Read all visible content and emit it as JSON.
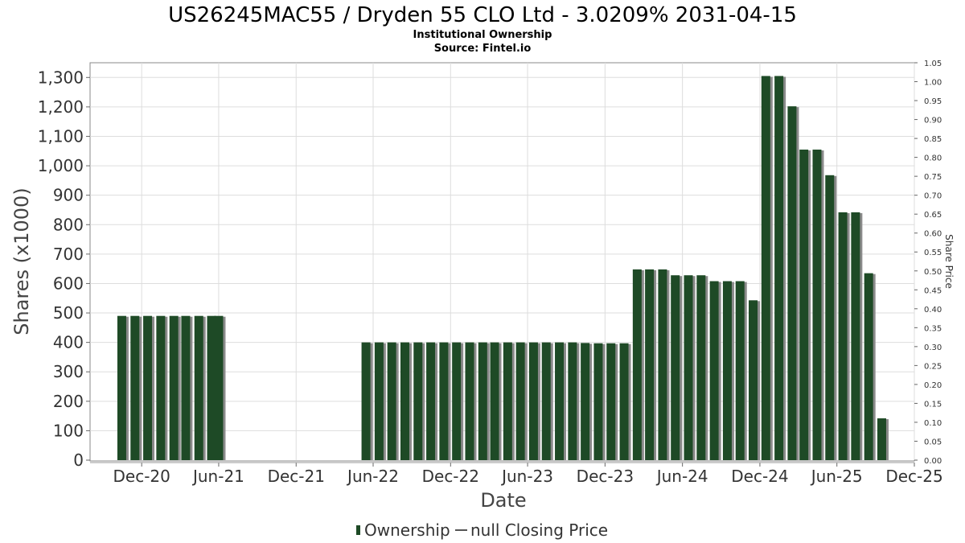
{
  "title": "US26245MAC55 / Dryden 55 CLO Ltd - 3.0209% 2031-04-15",
  "subtitle": "Institutional Ownership",
  "source": "Source: Fintel.io",
  "colors": {
    "bar": "#1e4a26",
    "bar_shadow": "#8a8a8a",
    "grid": "#dddddd",
    "plot_border": "#888888"
  },
  "legend": {
    "ownership_label": "Ownership",
    "price_label": "null Closing Price"
  },
  "chart_data": {
    "type": "bar",
    "title": "US26245MAC55 / Dryden 55 CLO Ltd - 3.0209% 2031-04-15",
    "subtitle": "Institutional Ownership",
    "xlabel": "Date",
    "ylabel": "Shares (x1000)",
    "y2label": "Share Price",
    "ylim": [
      0,
      1350
    ],
    "y2lim": [
      0,
      1.05
    ],
    "xlim": [
      "2020-08-01",
      "2025-12-01"
    ],
    "yticks": [
      "0",
      "100",
      "200",
      "300",
      "400",
      "500",
      "600",
      "700",
      "800",
      "900",
      "1,000",
      "1,100",
      "1,200",
      "1,300"
    ],
    "y2ticks": [
      "0.00",
      "0.05",
      "0.10",
      "0.15",
      "0.20",
      "0.25",
      "0.30",
      "0.35",
      "0.40",
      "0.45",
      "0.50",
      "0.55",
      "0.60",
      "0.65",
      "0.70",
      "0.75",
      "0.80",
      "0.85",
      "0.90",
      "0.95",
      "1.00",
      "1.05"
    ],
    "xticks": [
      {
        "date": "2020-12-01",
        "label": "Dec-20"
      },
      {
        "date": "2021-06-01",
        "label": "Jun-21"
      },
      {
        "date": "2021-12-01",
        "label": "Dec-21"
      },
      {
        "date": "2022-06-01",
        "label": "Jun-22"
      },
      {
        "date": "2022-12-01",
        "label": "Dec-22"
      },
      {
        "date": "2023-06-01",
        "label": "Jun-23"
      },
      {
        "date": "2023-12-01",
        "label": "Dec-23"
      },
      {
        "date": "2024-06-01",
        "label": "Jun-24"
      },
      {
        "date": "2024-12-01",
        "label": "Dec-24"
      },
      {
        "date": "2025-06-01",
        "label": "Jun-25"
      },
      {
        "date": "2025-12-01",
        "label": "Dec-25"
      }
    ],
    "grid": true,
    "legend_position": "bottom-center",
    "series": [
      {
        "name": "Ownership",
        "points": [
          {
            "date": "2020-10-15",
            "value": 490
          },
          {
            "date": "2020-11-15",
            "value": 490
          },
          {
            "date": "2020-12-15",
            "value": 490
          },
          {
            "date": "2021-01-15",
            "value": 490
          },
          {
            "date": "2021-02-15",
            "value": 490
          },
          {
            "date": "2021-03-15",
            "value": 490
          },
          {
            "date": "2021-04-15",
            "value": 490
          },
          {
            "date": "2021-05-15",
            "value": 490
          },
          {
            "date": "2021-06-01",
            "value": 490
          },
          {
            "date": "2022-05-15",
            "value": 400
          },
          {
            "date": "2022-06-15",
            "value": 400
          },
          {
            "date": "2022-07-15",
            "value": 400
          },
          {
            "date": "2022-08-15",
            "value": 400
          },
          {
            "date": "2022-09-15",
            "value": 400
          },
          {
            "date": "2022-10-15",
            "value": 400
          },
          {
            "date": "2022-11-15",
            "value": 400
          },
          {
            "date": "2022-12-15",
            "value": 400
          },
          {
            "date": "2023-01-15",
            "value": 400
          },
          {
            "date": "2023-02-15",
            "value": 400
          },
          {
            "date": "2023-03-15",
            "value": 400
          },
          {
            "date": "2023-04-15",
            "value": 400
          },
          {
            "date": "2023-05-15",
            "value": 400
          },
          {
            "date": "2023-06-15",
            "value": 400
          },
          {
            "date": "2023-07-15",
            "value": 400
          },
          {
            "date": "2023-08-15",
            "value": 400
          },
          {
            "date": "2023-09-15",
            "value": 400
          },
          {
            "date": "2023-10-15",
            "value": 398
          },
          {
            "date": "2023-11-15",
            "value": 397
          },
          {
            "date": "2023-12-15",
            "value": 397
          },
          {
            "date": "2024-01-15",
            "value": 397
          },
          {
            "date": "2024-02-15",
            "value": 648
          },
          {
            "date": "2024-03-15",
            "value": 648
          },
          {
            "date": "2024-04-15",
            "value": 648
          },
          {
            "date": "2024-05-15",
            "value": 628
          },
          {
            "date": "2024-06-15",
            "value": 628
          },
          {
            "date": "2024-07-15",
            "value": 628
          },
          {
            "date": "2024-08-15",
            "value": 608
          },
          {
            "date": "2024-09-15",
            "value": 608
          },
          {
            "date": "2024-10-15",
            "value": 608
          },
          {
            "date": "2024-11-15",
            "value": 543
          },
          {
            "date": "2024-12-15",
            "value": 1305
          },
          {
            "date": "2025-01-15",
            "value": 1305
          },
          {
            "date": "2025-02-15",
            "value": 1202
          },
          {
            "date": "2025-03-15",
            "value": 1055
          },
          {
            "date": "2025-04-15",
            "value": 1055
          },
          {
            "date": "2025-05-15",
            "value": 968
          },
          {
            "date": "2025-06-15",
            "value": 842
          },
          {
            "date": "2025-07-15",
            "value": 842
          },
          {
            "date": "2025-08-15",
            "value": 635
          },
          {
            "date": "2025-09-15",
            "value": 142
          }
        ]
      }
    ]
  }
}
